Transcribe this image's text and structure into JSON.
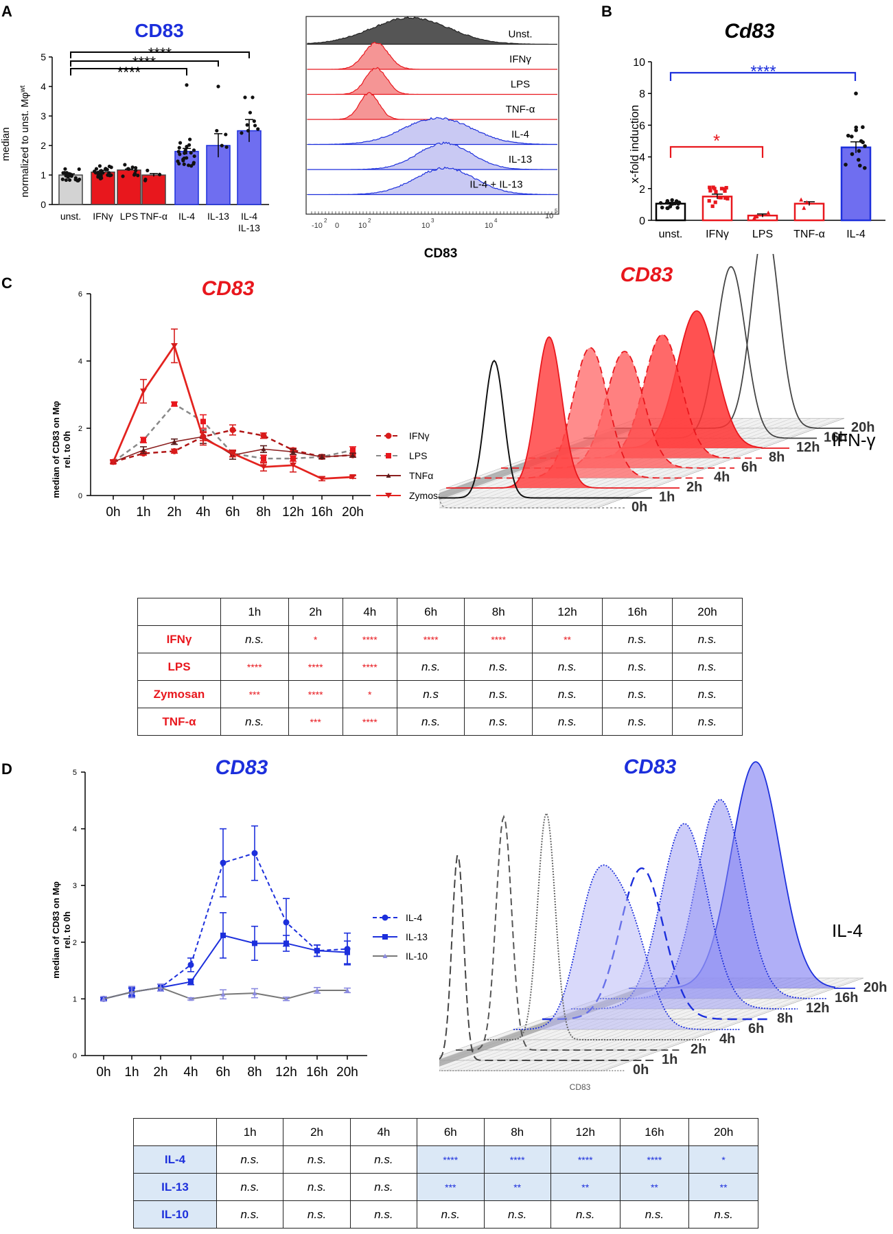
{
  "panel_letters": {
    "a": "A",
    "b": "B",
    "c": "C",
    "d": "D"
  },
  "colors": {
    "red": "#e8171d",
    "blue": "#1c2fdc",
    "lightblue": "#6f6ef0",
    "gray": "#d3d3d3",
    "dark": "#555555"
  },
  "panelA": {
    "bar_title": "CD83",
    "ylabel_line1": "median",
    "ylabel_line2": "normalized to unst. Mφ",
    "ylabel_sup": "wt",
    "sig_labels": [
      "****",
      "****",
      "****"
    ],
    "hist_labels": [
      "Unst.",
      "IFNγ",
      "LPS",
      "TNF-α",
      "IL-4",
      "IL-13",
      "IL-4 + IL-13"
    ],
    "hist_xlabel": "CD83",
    "hist_ticks": [
      "-10",
      "2",
      "0",
      "10",
      "2",
      "10",
      "3",
      "10",
      "4",
      "10",
      "5"
    ]
  },
  "panelB": {
    "title": "Cd83",
    "sig_blue": "****",
    "sig_red": "*"
  },
  "panelC": {
    "title_left": "CD83",
    "title_right": "CD83",
    "ylabel_line1": "median of CD83 on Mφ",
    "ylabel_line2": "rel. to 0h",
    "legend": [
      "IFNγ",
      "LPS",
      "TNFα",
      "Zymosan"
    ],
    "ridge_name": "IFN-γ",
    "ridge_times": [
      "20h",
      "16h",
      "12h",
      "8h",
      "6h",
      "4h",
      "2h",
      "1h",
      "0h"
    ],
    "table": {
      "header": [
        "",
        "1h",
        "2h",
        "4h",
        "6h",
        "8h",
        "12h",
        "16h",
        "20h"
      ],
      "rows": [
        {
          "label": "IFNγ",
          "cells": [
            "n.s.",
            "*",
            "****",
            "****",
            "****",
            "**",
            "n.s.",
            "n.s."
          ]
        },
        {
          "label": "LPS",
          "cells": [
            "****",
            "****",
            "****",
            "n.s.",
            "n.s.",
            "n.s.",
            "n.s.",
            "n.s."
          ]
        },
        {
          "label": "Zymosan",
          "cells": [
            "***",
            "****",
            "*",
            "n.s",
            "n.s.",
            "n.s.",
            "n.s.",
            "n.s."
          ]
        },
        {
          "label": "TNF-α",
          "cells": [
            "n.s.",
            "***",
            "****",
            "n.s.",
            "n.s.",
            "n.s.",
            "n.s.",
            "n.s."
          ]
        }
      ]
    }
  },
  "panelD": {
    "title_left": "CD83",
    "title_right": "CD83",
    "ylabel_line1": "median of CD83 on Mφ",
    "ylabel_line2": "rel. to 0h",
    "legend": [
      "IL-4",
      "IL-13",
      "IL-10"
    ],
    "ridge_name": "IL-4",
    "ridge_times": [
      "20h",
      "16h",
      "12h",
      "8h",
      "6h",
      "4h",
      "2h",
      "1h",
      "0h"
    ],
    "ridge_xlabel": "CD83",
    "table": {
      "header": [
        "",
        "1h",
        "2h",
        "4h",
        "6h",
        "8h",
        "12h",
        "16h",
        "20h"
      ],
      "rows": [
        {
          "label": "IL-4",
          "cells": [
            "n.s.",
            "n.s.",
            "n.s.",
            "****",
            "****",
            "****",
            "****",
            "*"
          ]
        },
        {
          "label": "IL-13",
          "cells": [
            "n.s.",
            "n.s.",
            "n.s.",
            "***",
            "**",
            "**",
            "**",
            "**"
          ]
        },
        {
          "label": "IL-10",
          "cells": [
            "n.s.",
            "n.s.",
            "n.s.",
            "n.s.",
            "n.s.",
            "n.s.",
            "n.s.",
            "n.s."
          ]
        }
      ]
    }
  },
  "chart_data": [
    {
      "id": "A-bar",
      "type": "bar",
      "title": "CD83",
      "categories": [
        "unst.",
        "IFNγ",
        "LPS",
        "TNF-α",
        "IL-4",
        "IL-13",
        "IL-4\nIL-13"
      ],
      "values": [
        1.0,
        1.1,
        1.17,
        1.0,
        1.8,
        2.0,
        2.5
      ],
      "errors": [
        0.04,
        0.06,
        0.03,
        0.05,
        0.1,
        0.4,
        0.38
      ],
      "ylim": [
        0,
        5
      ],
      "yticks": [
        0,
        1,
        2,
        3,
        4,
        5
      ],
      "ylabel": "median normalized to unst. Mφwt"
    },
    {
      "id": "B-bar",
      "type": "bar",
      "title": "Cd83",
      "categories": [
        "unst.",
        "IFNγ",
        "LPS",
        "TNF-α",
        "IL-4"
      ],
      "values": [
        1.05,
        1.5,
        0.3,
        1.05,
        4.6
      ],
      "errors": [
        0.08,
        0.15,
        0.1,
        0.12,
        0.35
      ],
      "ylim": [
        0,
        10
      ],
      "yticks": [
        0,
        2,
        4,
        6,
        8,
        10
      ],
      "ylabel": "x-fold induction"
    },
    {
      "id": "C-line",
      "type": "line",
      "x": [
        "0h",
        "1h",
        "2h",
        "4h",
        "6h",
        "8h",
        "12h",
        "16h",
        "20h"
      ],
      "ylim": [
        0,
        6
      ],
      "yticks": [
        0,
        2,
        4,
        6
      ],
      "series": [
        {
          "name": "IFNγ",
          "values": [
            1.0,
            1.25,
            1.32,
            1.75,
            1.95,
            1.78,
            1.35,
            1.15,
            1.2
          ],
          "errors": [
            0.05,
            0.05,
            0.06,
            0.12,
            0.15,
            0.08,
            0.06,
            0.05,
            0.06
          ]
        },
        {
          "name": "LPS",
          "values": [
            1.0,
            1.65,
            2.72,
            2.2,
            1.25,
            1.1,
            1.1,
            1.15,
            1.35
          ],
          "errors": [
            0.05,
            0.08,
            0.06,
            0.2,
            0.1,
            0.1,
            0.08,
            0.06,
            0.1
          ]
        },
        {
          "name": "TNFα",
          "values": [
            1.0,
            1.35,
            1.6,
            1.75,
            1.2,
            1.38,
            1.3,
            1.15,
            1.2
          ],
          "errors": [
            0.05,
            0.1,
            0.08,
            0.2,
            0.12,
            0.1,
            0.08,
            0.06,
            0.06
          ]
        },
        {
          "name": "Zymosan",
          "values": [
            1.0,
            3.1,
            4.45,
            1.7,
            1.25,
            0.85,
            0.9,
            0.5,
            0.55
          ],
          "errors": [
            0.05,
            0.35,
            0.5,
            0.2,
            0.1,
            0.12,
            0.2,
            0.06,
            0.04
          ]
        }
      ]
    },
    {
      "id": "D-line",
      "type": "line",
      "x": [
        "0h",
        "1h",
        "2h",
        "4h",
        "6h",
        "8h",
        "12h",
        "16h",
        "20h"
      ],
      "ylim": [
        0,
        5
      ],
      "yticks": [
        0,
        1,
        2,
        3,
        4,
        5
      ],
      "series": [
        {
          "name": "IL-4",
          "values": [
            1.0,
            1.12,
            1.2,
            1.6,
            3.4,
            3.57,
            2.35,
            1.85,
            1.88
          ],
          "errors": [
            0.02,
            0.06,
            0.06,
            0.12,
            0.6,
            0.48,
            0.42,
            0.1,
            0.28
          ]
        },
        {
          "name": "IL-13",
          "values": [
            1.0,
            1.12,
            1.2,
            1.3,
            2.12,
            1.98,
            1.98,
            1.85,
            1.82
          ],
          "errors": [
            0.02,
            0.08,
            0.06,
            0.05,
            0.4,
            0.3,
            0.14,
            0.1,
            0.2
          ]
        },
        {
          "name": "IL-10",
          "values": [
            1.0,
            1.12,
            1.2,
            1.0,
            1.08,
            1.1,
            1.0,
            1.15,
            1.15
          ],
          "errors": [
            0.04,
            0.1,
            0.06,
            0.02,
            0.08,
            0.08,
            0.03,
            0.05,
            0.04
          ]
        }
      ]
    }
  ]
}
